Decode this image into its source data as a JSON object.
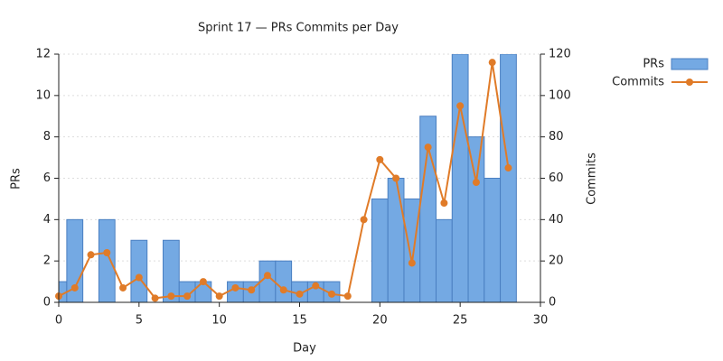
{
  "chart_data": {
    "type": "bar",
    "title": "Sprint 17 — PRs  Commits per Day",
    "xlabel": "Day",
    "ylabel": "PRs",
    "y2label": "Commits",
    "x": [
      0,
      1,
      2,
      3,
      4,
      5,
      6,
      7,
      8,
      9,
      10,
      11,
      12,
      13,
      14,
      15,
      16,
      17,
      18,
      19,
      20,
      21,
      22,
      23,
      24,
      25,
      26,
      27,
      28
    ],
    "series": [
      {
        "name": "PRs",
        "type": "bar",
        "color": "#74a9e3",
        "edgecolor": "#4a7fc1",
        "values": [
          1,
          4,
          0,
          4,
          0,
          3,
          0,
          3,
          1,
          1,
          0,
          1,
          1,
          2,
          2,
          1,
          1,
          1,
          0,
          0,
          5,
          6,
          5,
          9,
          4,
          12,
          8,
          6,
          12
        ]
      },
      {
        "name": "Commits",
        "type": "line",
        "axis": "y2",
        "color": "#e07b28",
        "values": [
          3,
          7,
          23,
          24,
          7,
          12,
          2,
          3,
          3,
          10,
          3,
          7,
          6,
          13,
          6,
          4,
          8,
          4,
          3,
          40,
          69,
          60,
          19,
          75,
          48,
          95,
          58,
          116,
          65
        ]
      }
    ],
    "xlim": [
      0,
      30
    ],
    "xticks": [
      0,
      5,
      10,
      15,
      20,
      25,
      30
    ],
    "ylim": [
      0,
      12
    ],
    "yticks": [
      0,
      2,
      4,
      6,
      8,
      10,
      12
    ],
    "y2lim": [
      0,
      120
    ],
    "y2ticks": [
      0,
      20,
      40,
      60,
      80,
      100,
      120
    ],
    "grid": true,
    "legend": "upper right"
  }
}
